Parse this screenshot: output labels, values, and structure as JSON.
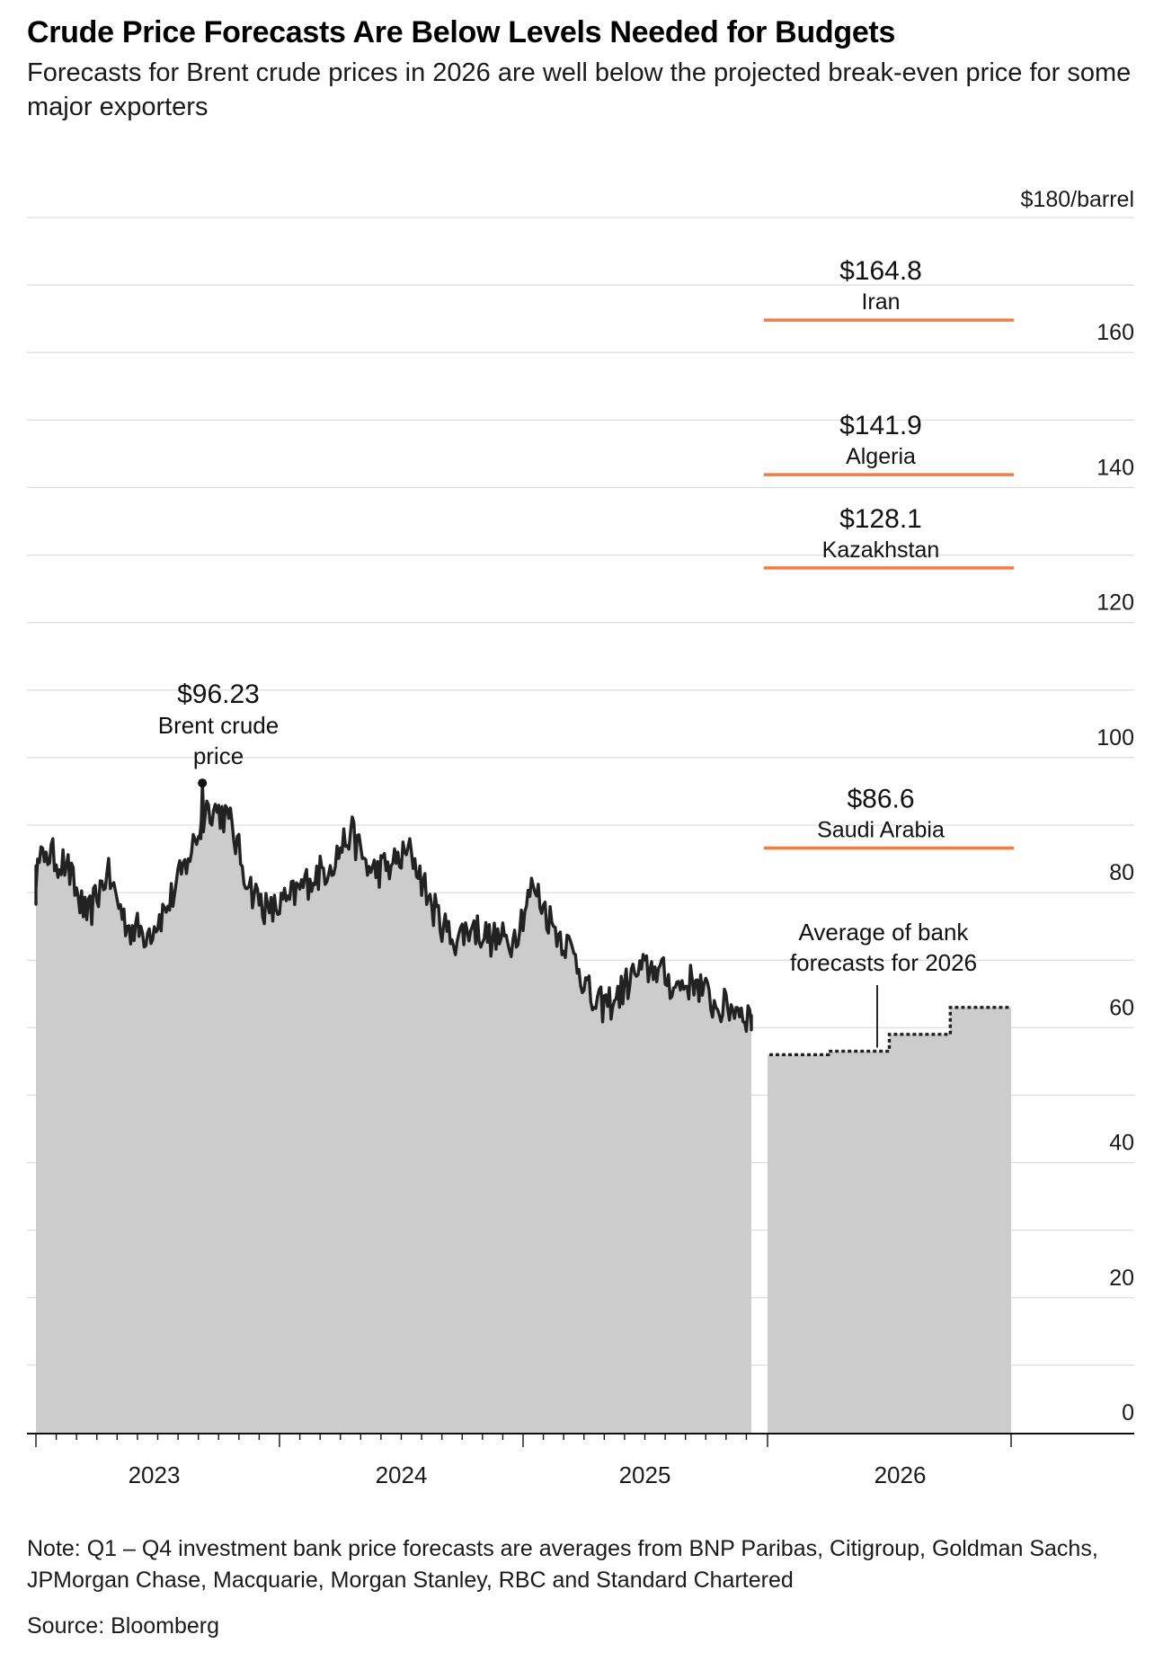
{
  "header": {
    "title": "Crude Price Forecasts Are Below Levels Needed for Budgets",
    "subtitle": "Forecasts for Brent crude prices in 2026 are well below the projected break-even price for some major exporters"
  },
  "footer": {
    "note": "Note: Q1 – Q4 investment bank price forecasts are averages from BNP Paribas, Citigroup, Goldman Sachs, JPMorgan Chase, Macquarie, Morgan Stanley, RBC and Standard Chartered",
    "source": "Source: Bloomberg"
  },
  "chart_data": {
    "type": "area",
    "title": "Crude Price Forecasts Are Below Levels Needed for Budgets",
    "subtitle": "Forecasts for Brent crude prices in 2026 are well below the projected break-even price for some major exporters",
    "ylim": [
      0,
      180
    ],
    "y_ticks": [
      0,
      20,
      40,
      60,
      80,
      100,
      120,
      140,
      160,
      180
    ],
    "y_tick_labels": [
      "0",
      "20",
      "40",
      "60",
      "80",
      "100",
      "120",
      "140",
      "160",
      "$180/barrel"
    ],
    "x_tick_labels": [
      "2023",
      "2024",
      "2025",
      "2026"
    ],
    "grid": true,
    "colors": {
      "area": "#cccccc",
      "line": "#222222",
      "breakeven": "#ef7d45",
      "grid": "#dcdcdc"
    },
    "series": [
      {
        "name": "Brent crude price",
        "x": [
          "2022-12",
          "2023-01",
          "2023-02",
          "2023-03",
          "2023-04",
          "2023-05",
          "2023-06",
          "2023-07",
          "2023-08",
          "2023-09",
          "2023-10",
          "2023-11",
          "2023-12",
          "2024-01",
          "2024-02",
          "2024-03",
          "2024-04",
          "2024-05",
          "2024-06",
          "2024-07",
          "2024-08",
          "2024-09",
          "2024-10",
          "2024-11",
          "2024-12",
          "2025-01",
          "2025-02",
          "2025-03",
          "2025-04",
          "2025-05",
          "2025-06",
          "2025-07",
          "2025-08",
          "2025-09",
          "2025-10",
          "2025-11",
          "2025-12"
        ],
        "values": [
          80,
          86,
          84,
          76,
          83,
          75,
          74,
          78,
          85,
          93,
          91,
          81,
          77,
          79,
          82,
          84,
          89,
          83,
          84,
          86,
          78,
          73,
          75,
          73,
          73,
          81,
          75,
          71,
          63,
          64,
          68,
          69,
          66,
          67,
          63,
          63,
          61
        ]
      },
      {
        "name": "Average of bank forecasts for 2026",
        "x": [
          "2026-Q1",
          "2026-Q2",
          "2026-Q3",
          "2026-Q4"
        ],
        "values": [
          56,
          56.5,
          59,
          63
        ]
      }
    ],
    "peak_annotation": {
      "value_label": "$96.23",
      "value": 96.23,
      "date": "2023-09",
      "label": "Brent crude price"
    },
    "forecast_annotation": {
      "label": "Average of bank forecasts for 2026"
    },
    "breakeven": [
      {
        "country": "Iran",
        "value": 164.8,
        "label": "$164.8"
      },
      {
        "country": "Algeria",
        "value": 141.9,
        "label": "$141.9"
      },
      {
        "country": "Kazakhstan",
        "value": 128.1,
        "label": "$128.1"
      },
      {
        "country": "Saudi Arabia",
        "value": 86.6,
        "label": "$86.6"
      }
    ]
  }
}
